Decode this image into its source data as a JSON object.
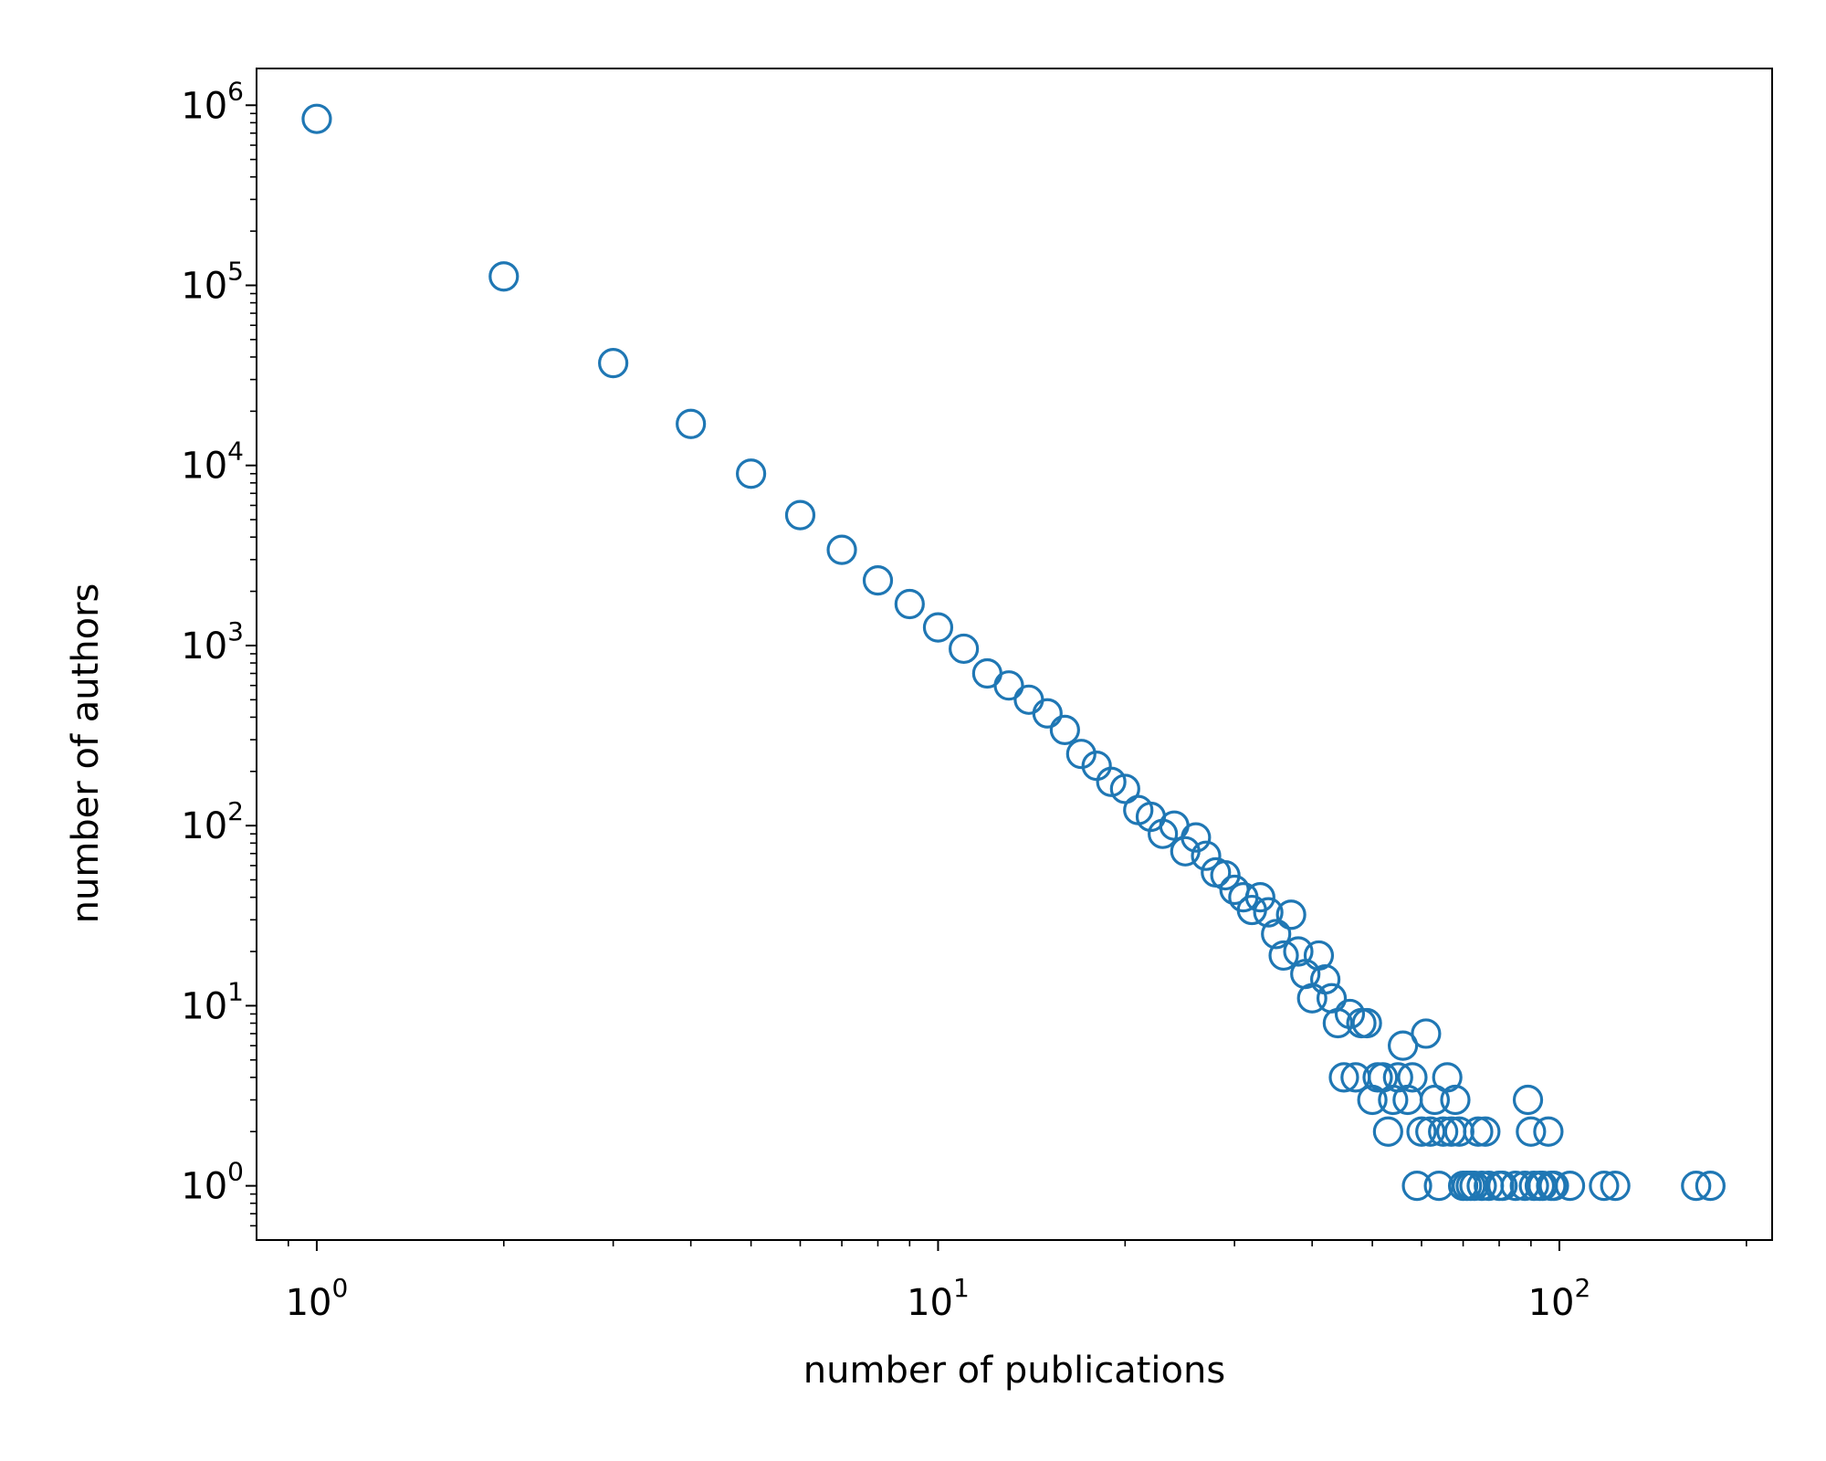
{
  "chart_data": {
    "type": "scatter",
    "xlabel": "number of publications",
    "ylabel": "number of authors",
    "xscale": "log",
    "yscale": "log",
    "xlim": [
      0.8,
      220
    ],
    "ylim": [
      0.5,
      1600000
    ],
    "grid": false,
    "marker": "open-circle",
    "marker_color": "#1f77b4",
    "x_ticks": [
      {
        "value": 1,
        "base": "10",
        "exp": "0"
      },
      {
        "value": 10,
        "base": "10",
        "exp": "1"
      },
      {
        "value": 100,
        "base": "10",
        "exp": "2"
      }
    ],
    "y_ticks": [
      {
        "value": 1,
        "base": "10",
        "exp": "0"
      },
      {
        "value": 10,
        "base": "10",
        "exp": "1"
      },
      {
        "value": 100,
        "base": "10",
        "exp": "2"
      },
      {
        "value": 1000,
        "base": "10",
        "exp": "3"
      },
      {
        "value": 10000,
        "base": "10",
        "exp": "4"
      },
      {
        "value": 100000,
        "base": "10",
        "exp": "5"
      },
      {
        "value": 1000000,
        "base": "10",
        "exp": "6"
      }
    ],
    "points": [
      [
        1,
        840000
      ],
      [
        2,
        112000
      ],
      [
        3,
        37000
      ],
      [
        4,
        17000
      ],
      [
        5,
        9000
      ],
      [
        6,
        5300
      ],
      [
        7,
        3400
      ],
      [
        8,
        2300
      ],
      [
        9,
        1700
      ],
      [
        10,
        1260
      ],
      [
        11,
        960
      ],
      [
        12,
        700
      ],
      [
        13,
        600
      ],
      [
        14,
        500
      ],
      [
        15,
        420
      ],
      [
        16,
        340
      ],
      [
        17,
        250
      ],
      [
        18,
        215
      ],
      [
        19,
        175
      ],
      [
        20,
        160
      ],
      [
        21,
        122
      ],
      [
        22,
        112
      ],
      [
        23,
        90
      ],
      [
        24,
        100
      ],
      [
        25,
        72
      ],
      [
        26,
        86
      ],
      [
        27,
        68
      ],
      [
        28,
        55
      ],
      [
        29,
        53
      ],
      [
        30,
        44
      ],
      [
        31,
        40
      ],
      [
        32,
        34
      ],
      [
        33,
        40
      ],
      [
        34,
        33
      ],
      [
        35,
        25
      ],
      [
        36,
        19
      ],
      [
        37,
        32
      ],
      [
        38,
        20
      ],
      [
        39,
        15
      ],
      [
        40,
        11
      ],
      [
        41,
        19
      ],
      [
        42,
        14
      ],
      [
        43,
        11
      ],
      [
        44,
        8
      ],
      [
        45,
        4
      ],
      [
        46,
        9
      ],
      [
        47,
        4
      ],
      [
        48,
        8
      ],
      [
        49,
        8
      ],
      [
        50,
        3
      ],
      [
        51,
        4
      ],
      [
        52,
        4
      ],
      [
        53,
        2
      ],
      [
        54,
        3
      ],
      [
        55,
        4
      ],
      [
        56,
        6
      ],
      [
        57,
        3
      ],
      [
        58,
        4
      ],
      [
        59,
        1
      ],
      [
        60,
        2
      ],
      [
        61,
        7
      ],
      [
        62,
        2
      ],
      [
        63,
        3
      ],
      [
        64,
        1
      ],
      [
        65,
        2
      ],
      [
        66,
        4
      ],
      [
        67,
        2
      ],
      [
        68,
        3
      ],
      [
        69,
        2
      ],
      [
        70,
        1
      ],
      [
        71,
        1
      ],
      [
        72,
        1
      ],
      [
        73,
        1
      ],
      [
        74,
        2
      ],
      [
        75,
        1
      ],
      [
        76,
        2
      ],
      [
        77,
        1
      ],
      [
        80,
        1
      ],
      [
        81,
        1
      ],
      [
        85,
        1
      ],
      [
        88,
        1
      ],
      [
        89,
        3
      ],
      [
        90,
        2
      ],
      [
        91,
        1
      ],
      [
        93,
        1
      ],
      [
        94,
        1
      ],
      [
        96,
        2
      ],
      [
        97,
        1
      ],
      [
        98,
        1
      ],
      [
        104,
        1
      ],
      [
        118,
        1
      ],
      [
        123,
        1
      ],
      [
        166,
        1
      ],
      [
        175,
        1
      ]
    ]
  }
}
